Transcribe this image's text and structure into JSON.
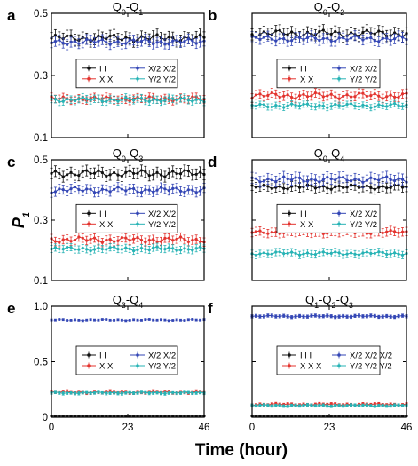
{
  "colors": {
    "II": "#111111",
    "XX": "#e3342f",
    "X2X2": "#3346b5",
    "Y2Y2": "#27b3b5"
  },
  "figure": {
    "xlabel": "Time (hour)",
    "ylabel": "P",
    "ylabel_sub": "1"
  },
  "chart_data": [
    {
      "type": "line",
      "panel": "a",
      "title_parts": [
        "Q",
        "0",
        "-Q",
        "1"
      ],
      "xlim": [
        0,
        46
      ],
      "xticks": [
        0,
        23,
        46
      ],
      "xticklabels": [
        "",
        "",
        ""
      ],
      "ylim": [
        0.1,
        0.5
      ],
      "yticks": [
        0.1,
        0.3,
        0.5
      ],
      "yticklabels": [
        "0.1",
        "0.3",
        "0.5"
      ],
      "legend": [
        "I I",
        "X X",
        "X/2 X/2",
        "Y/2 Y/2"
      ],
      "series": [
        {
          "name": "I I",
          "key": "II",
          "mean": 0.42,
          "amp": 0.012,
          "err": 0.018
        },
        {
          "name": "X X",
          "key": "XX",
          "mean": 0.225,
          "amp": 0.008,
          "err": 0.012
        },
        {
          "name": "X/2 X/2",
          "key": "X2X2",
          "mean": 0.408,
          "amp": 0.01,
          "err": 0.016
        },
        {
          "name": "Y/2 Y/2",
          "key": "Y2Y2",
          "mean": 0.222,
          "amp": 0.008,
          "err": 0.012
        }
      ]
    },
    {
      "type": "line",
      "panel": "b",
      "title_parts": [
        "Q",
        "0",
        "-Q",
        "2"
      ],
      "xlim": [
        0,
        46
      ],
      "xticks": [
        0,
        23,
        46
      ],
      "xticklabels": [
        "",
        "",
        ""
      ],
      "ylim": [
        0.1,
        0.5
      ],
      "yticks": [
        0.1,
        0.3,
        0.5
      ],
      "yticklabels": [
        "",
        "",
        ""
      ],
      "legend": [
        "I I",
        "X X",
        "X/2 X/2",
        "Y/2 Y/2"
      ],
      "series": [
        {
          "name": "I I",
          "key": "II",
          "mean": 0.435,
          "amp": 0.012,
          "err": 0.018
        },
        {
          "name": "X X",
          "key": "XX",
          "mean": 0.235,
          "amp": 0.01,
          "err": 0.014
        },
        {
          "name": "X/2 X/2",
          "key": "X2X2",
          "mean": 0.418,
          "amp": 0.01,
          "err": 0.016
        },
        {
          "name": "Y/2 Y/2",
          "key": "Y2Y2",
          "mean": 0.203,
          "amp": 0.007,
          "err": 0.01
        }
      ]
    },
    {
      "type": "line",
      "panel": "c",
      "title_parts": [
        "Q",
        "0",
        "-Q",
        "3"
      ],
      "xlim": [
        0,
        46
      ],
      "xticks": [
        0,
        23,
        46
      ],
      "xticklabels": [
        "",
        "",
        ""
      ],
      "ylim": [
        0.1,
        0.5
      ],
      "yticks": [
        0.1,
        0.3,
        0.5
      ],
      "yticklabels": [
        "0.1",
        "0.3",
        "0.5"
      ],
      "legend": [
        "I I",
        "X X",
        "X/2 X/2",
        "Y/2 Y/2"
      ],
      "series": [
        {
          "name": "I I",
          "key": "II",
          "mean": 0.455,
          "amp": 0.012,
          "err": 0.018
        },
        {
          "name": "X X",
          "key": "XX",
          "mean": 0.235,
          "amp": 0.01,
          "err": 0.014
        },
        {
          "name": "X/2 X/2",
          "key": "X2X2",
          "mean": 0.4,
          "amp": 0.01,
          "err": 0.015
        },
        {
          "name": "Y/2 Y/2",
          "key": "Y2Y2",
          "mean": 0.205,
          "amp": 0.007,
          "err": 0.012
        }
      ]
    },
    {
      "type": "line",
      "panel": "d",
      "title_parts": [
        "Q",
        "0",
        "-Q",
        "4"
      ],
      "xlim": [
        0,
        46
      ],
      "xticks": [
        0,
        23,
        46
      ],
      "xticklabels": [
        "",
        "",
        ""
      ],
      "ylim": [
        0.1,
        0.5
      ],
      "yticks": [
        0.1,
        0.3,
        0.5
      ],
      "yticklabels": [
        "",
        "",
        ""
      ],
      "legend": [
        "I I",
        "X X",
        "X/2 X/2",
        "Y/2 Y/2"
      ],
      "series": [
        {
          "name": "I I",
          "key": "II",
          "mean": 0.41,
          "amp": 0.008,
          "err": 0.016
        },
        {
          "name": "X X",
          "key": "XX",
          "mean": 0.26,
          "amp": 0.006,
          "err": 0.014
        },
        {
          "name": "X/2 X/2",
          "key": "X2X2",
          "mean": 0.435,
          "amp": 0.01,
          "err": 0.018
        },
        {
          "name": "Y/2 Y/2",
          "key": "Y2Y2",
          "mean": 0.19,
          "amp": 0.006,
          "err": 0.012
        }
      ]
    },
    {
      "type": "line",
      "panel": "e",
      "title_parts": [
        "Q",
        "3",
        "-Q",
        "4"
      ],
      "xlim": [
        0,
        46
      ],
      "xticks": [
        0,
        23,
        46
      ],
      "xticklabels": [
        "0",
        "23",
        "46"
      ],
      "ylim": [
        0,
        1.0
      ],
      "yticks": [
        0,
        0.5,
        1.0
      ],
      "yticklabels": [
        "0",
        "0.5",
        "1.0"
      ],
      "legend": [
        "I I",
        "X X",
        "X/2 X/2",
        "Y/2 Y/2"
      ],
      "series": [
        {
          "name": "I I",
          "key": "II",
          "mean": 0.01,
          "amp": 0.0,
          "err": 0.0
        },
        {
          "name": "X X",
          "key": "XX",
          "mean": 0.225,
          "amp": 0.008,
          "err": 0.015
        },
        {
          "name": "X/2 X/2",
          "key": "X2X2",
          "mean": 0.875,
          "amp": 0.006,
          "err": 0.012
        },
        {
          "name": "Y/2 Y/2",
          "key": "Y2Y2",
          "mean": 0.22,
          "amp": 0.008,
          "err": 0.015
        }
      ]
    },
    {
      "type": "line",
      "panel": "f",
      "title_parts": [
        "Q",
        "1",
        "-Q",
        "2",
        "-Q",
        "3"
      ],
      "xlim": [
        0,
        46
      ],
      "xticks": [
        0,
        23,
        46
      ],
      "xticklabels": [
        "0",
        "23",
        "46"
      ],
      "ylim": [
        0,
        1.0
      ],
      "yticks": [
        0,
        0.5,
        1.0
      ],
      "yticklabels": [
        "",
        "",
        ""
      ],
      "legend": [
        "I I I",
        "X X X",
        "X/2 X/2 X/2",
        "Y/2 Y/2 Y/2"
      ],
      "series": [
        {
          "name": "I I I",
          "key": "II",
          "mean": 0.01,
          "amp": 0.0,
          "err": 0.0
        },
        {
          "name": "X X X",
          "key": "XX",
          "mean": 0.115,
          "amp": 0.008,
          "err": 0.012
        },
        {
          "name": "X/2 X/2 X/2",
          "key": "X2X2",
          "mean": 0.91,
          "amp": 0.008,
          "err": 0.014
        },
        {
          "name": "Y/2 Y/2 Y/2",
          "key": "Y2Y2",
          "mean": 0.105,
          "amp": 0.007,
          "err": 0.012
        }
      ]
    }
  ]
}
